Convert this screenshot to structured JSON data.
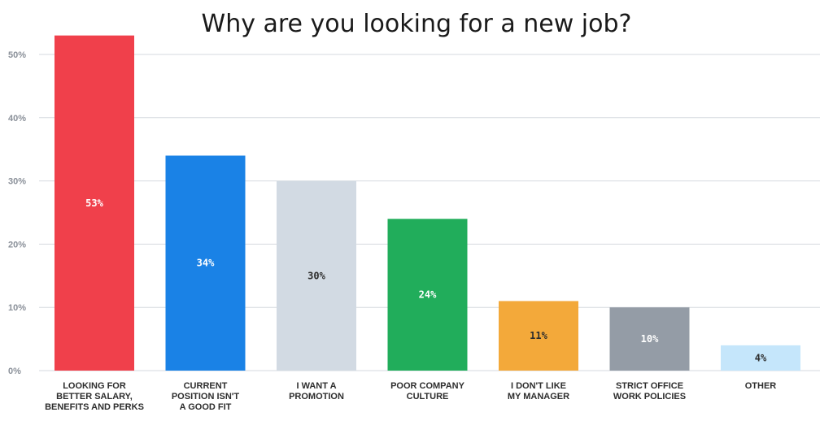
{
  "chart_data": {
    "type": "bar",
    "title": "Why are you looking for a new job?",
    "xlabel": "",
    "ylabel": "",
    "ylim": [
      0,
      50
    ],
    "yticks": [
      0,
      10,
      20,
      30,
      40,
      50
    ],
    "ytick_labels": [
      "0%",
      "10%",
      "20%",
      "30%",
      "40%",
      "50%"
    ],
    "grid": true,
    "legend": "none",
    "categories": [
      [
        "LOOKING FOR",
        "BETTER SALARY,",
        "BENEFITS AND PERKS"
      ],
      [
        "CURRENT",
        "POSITION ISN'T",
        "A GOOD FIT"
      ],
      [
        "I WANT A",
        "PROMOTION"
      ],
      [
        "POOR COMPANY",
        "CULTURE"
      ],
      [
        "I DON'T LIKE",
        "MY MANAGER"
      ],
      [
        "STRICT OFFICE",
        "WORK POLICIES"
      ],
      [
        "OTHER"
      ]
    ],
    "values": [
      53,
      34,
      30,
      24,
      11,
      10,
      4
    ],
    "data_labels": [
      "53%",
      "34%",
      "30%",
      "24%",
      "11%",
      "10%",
      "4%"
    ],
    "colors": [
      "#f0404b",
      "#1a82e6",
      "#d2dae3",
      "#21ad5b",
      "#f3a93a",
      "#949ca6",
      "#c5e6fb"
    ],
    "label_colors": [
      "#ffffff",
      "#ffffff",
      "#2d2d2d",
      "#ffffff",
      "#2d2d2d",
      "#ffffff",
      "#2d2d2d"
    ]
  }
}
